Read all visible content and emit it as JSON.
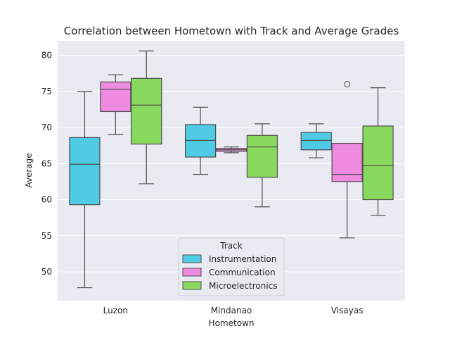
{
  "chart_data": {
    "type": "box",
    "title": "Correlation between Hometown with Track and Average Grades",
    "xlabel": "Hometown",
    "ylabel": "Average",
    "categories": [
      "Luzon",
      "Mindanao",
      "Visayas"
    ],
    "ylim": [
      46.0,
      82.0
    ],
    "yticks": [
      50,
      55,
      60,
      65,
      70,
      75,
      80
    ],
    "grid": true,
    "legend": {
      "title": "Track",
      "placement": "lower-center"
    },
    "series": [
      {
        "name": "Instrumentation",
        "color": "#4FCBE6",
        "boxes": [
          {
            "min": 47.8,
            "q1": 59.3,
            "median": 64.9,
            "q3": 68.6,
            "max": 75.0,
            "outliers": []
          },
          {
            "min": 63.5,
            "q1": 65.9,
            "median": 68.2,
            "q3": 70.4,
            "max": 72.8,
            "outliers": []
          },
          {
            "min": 65.8,
            "q1": 66.9,
            "median": 68.2,
            "q3": 69.3,
            "max": 70.5,
            "outliers": []
          }
        ]
      },
      {
        "name": "Communication",
        "color": "#EE8AE0",
        "boxes": [
          {
            "min": 69.0,
            "q1": 72.2,
            "median": 75.3,
            "q3": 76.3,
            "max": 77.3,
            "outliers": []
          },
          {
            "min": 66.5,
            "q1": 66.7,
            "median": 66.9,
            "q3": 67.1,
            "max": 67.3,
            "outliers": []
          },
          {
            "min": 54.7,
            "q1": 62.5,
            "median": 63.5,
            "q3": 67.8,
            "max": 67.8,
            "outliers": [
              76.0
            ]
          }
        ]
      },
      {
        "name": "Microelectronics",
        "color": "#8AD95F",
        "boxes": [
          {
            "min": 62.2,
            "q1": 67.7,
            "median": 73.1,
            "q3": 76.8,
            "max": 80.6,
            "outliers": []
          },
          {
            "min": 59.0,
            "q1": 63.1,
            "median": 67.3,
            "q3": 68.9,
            "max": 70.5,
            "outliers": []
          },
          {
            "min": 57.8,
            "q1": 60.0,
            "median": 64.7,
            "q3": 70.2,
            "max": 75.5,
            "outliers": []
          }
        ]
      }
    ]
  }
}
